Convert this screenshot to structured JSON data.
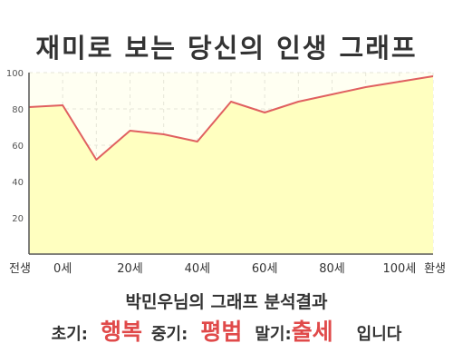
{
  "title": "재미로 보는 당신의 인생 그래프",
  "chart_data": {
    "type": "area",
    "x": [
      0,
      10,
      20,
      30,
      40,
      50,
      60,
      70,
      80,
      90,
      100,
      110,
      120
    ],
    "x_tick_values": [
      0,
      10,
      20,
      30,
      40,
      50,
      60,
      70,
      80,
      90,
      100,
      110,
      120
    ],
    "x_tick_labels": [
      "전생",
      "0세",
      "",
      "20세",
      "",
      "40세",
      "",
      "60세",
      "",
      "80세",
      "",
      "100세",
      "환생"
    ],
    "values": [
      81,
      82,
      52,
      68,
      66,
      62,
      84,
      78,
      84,
      88,
      92,
      95,
      98
    ],
    "ylim": [
      0,
      100
    ],
    "y_ticks": [
      20,
      40,
      60,
      80,
      100
    ],
    "grid": true,
    "colors": {
      "line": "#e06060",
      "fill": "#ffffc0",
      "plot_bg": "#fffff2",
      "grid": "#e6e6d8",
      "axis": "#555555"
    }
  },
  "result": {
    "heading": "박민우님의 그래프 분석결과",
    "early_label": "초기:",
    "early_value": "행복",
    "middle_label": "중기:",
    "middle_value": "평범",
    "late_label": "말기:",
    "late_value": "출세",
    "ending": "입니다"
  }
}
